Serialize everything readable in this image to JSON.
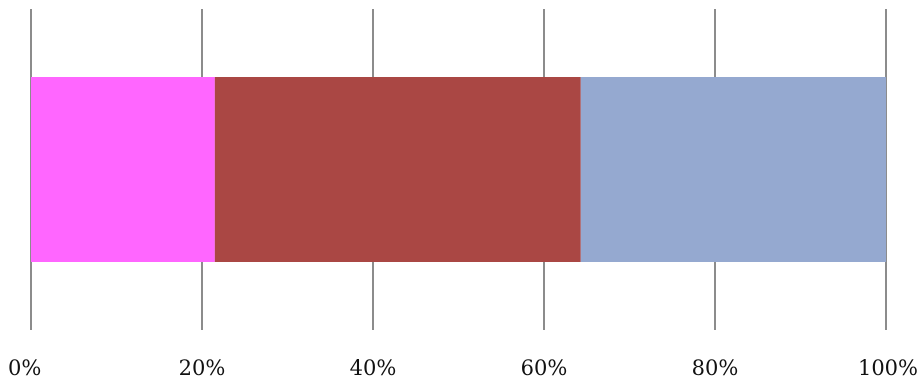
{
  "chart_data": {
    "type": "bar",
    "orientation": "horizontal",
    "stacked": true,
    "percent": true,
    "categories": [
      ""
    ],
    "series": [
      {
        "values": [
          21.5
        ],
        "color": "#ff66ff"
      },
      {
        "values": [
          42.8
        ],
        "color": "#aa4744"
      },
      {
        "values": [
          35.7
        ],
        "color": "#95a9d0"
      }
    ],
    "xlim": [
      0,
      100
    ],
    "xticks": [
      0,
      20,
      40,
      60,
      80,
      100
    ],
    "xtick_labels": [
      "0%",
      "20%",
      "40%",
      "60%",
      "80%",
      "100%"
    ],
    "grid": true,
    "legend": "none",
    "title": "",
    "xlabel": "",
    "ylabel": ""
  }
}
